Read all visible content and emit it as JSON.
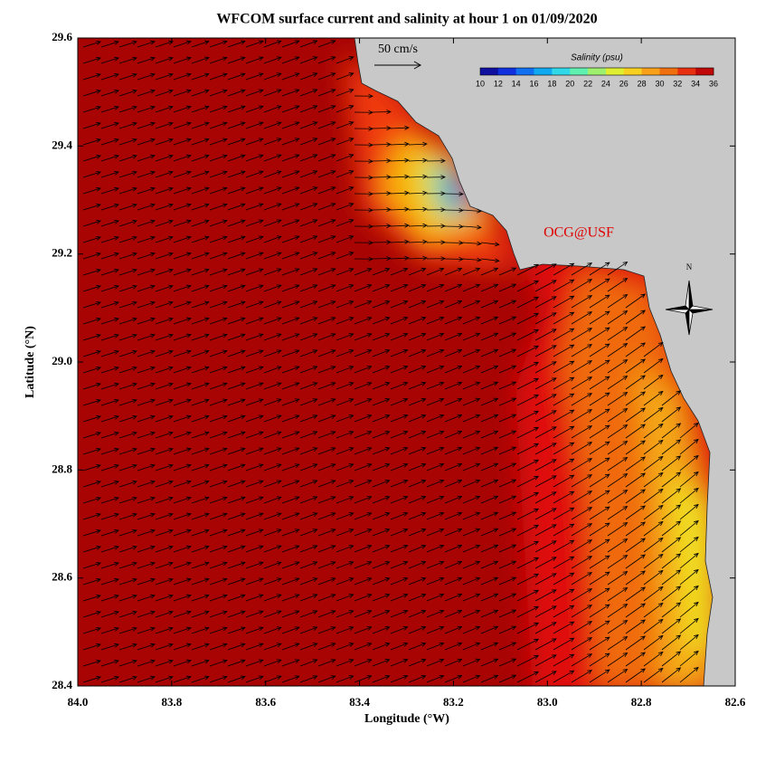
{
  "header": {
    "title": "WFCOM surface current and salinity at hour 1 on 01/09/2020"
  },
  "x_axis": {
    "label": "Longitude (°W)",
    "ticks": [
      "84.0",
      "83.8",
      "83.6",
      "83.4",
      "83.2",
      "83.0",
      "82.8",
      "82.6"
    ]
  },
  "y_axis": {
    "label": "Latitude (°N)",
    "ticks": [
      "29.6",
      "29.4",
      "29.2",
      "29.0",
      "28.8",
      "28.6",
      "28.4"
    ]
  },
  "colorbar": {
    "title": "Salinity (psu)",
    "ticks": [
      "10",
      "12",
      "14",
      "16",
      "18",
      "20",
      "22",
      "24",
      "26",
      "28",
      "30",
      "32",
      "34",
      "36"
    ]
  },
  "scale_arrow": {
    "label": "50 cm/s"
  },
  "watermark": "OCG@USF",
  "compass": {
    "label": "N"
  }
}
